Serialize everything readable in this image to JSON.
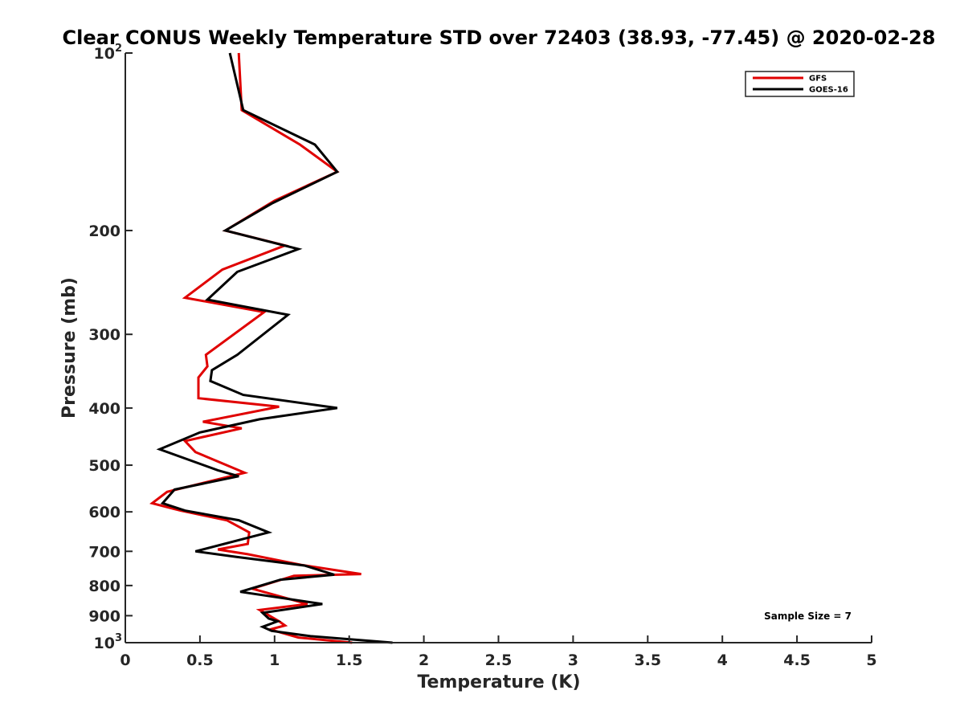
{
  "chart_data": {
    "type": "line",
    "title": "Clear CONUS Weekly Temperature STD over 72403 (38.93, -77.45) @ 2020-02-28",
    "xlabel": "Temperature (K)",
    "ylabel": "Pressure (mb)",
    "xlim": [
      0,
      5
    ],
    "ylim": [
      100,
      1000
    ],
    "y_scale": "log",
    "y_reversed": true,
    "x_ticks": [
      0,
      0.5,
      1,
      1.5,
      2,
      2.5,
      3,
      3.5,
      4,
      4.5,
      5
    ],
    "x_tick_labels": [
      "0",
      "0.5",
      "1",
      "1.5",
      "2",
      "2.5",
      "3",
      "3.5",
      "4",
      "4.5",
      "5"
    ],
    "y_ticks": [
      100,
      200,
      300,
      400,
      500,
      600,
      700,
      800,
      900,
      1000
    ],
    "y_tick_labels": [
      "10^2",
      "200",
      "300",
      "400",
      "500",
      "600",
      "700",
      "800",
      "900",
      "10^3"
    ],
    "legend_position": "top-right",
    "annotations": [
      "Sample Size = 7"
    ],
    "series": [
      {
        "name": "GFS",
        "color": "#e00000",
        "points": [
          [
            0.76,
            100
          ],
          [
            0.78,
            125
          ],
          [
            1.17,
            143
          ],
          [
            1.42,
            159
          ],
          [
            1.0,
            178
          ],
          [
            0.67,
            200
          ],
          [
            1.07,
            212
          ],
          [
            0.65,
            233
          ],
          [
            0.4,
            260
          ],
          [
            0.93,
            275
          ],
          [
            0.54,
            325
          ],
          [
            0.55,
            340
          ],
          [
            0.49,
            355
          ],
          [
            0.49,
            385
          ],
          [
            1.03,
            398
          ],
          [
            0.52,
            422
          ],
          [
            0.78,
            433
          ],
          [
            0.4,
            455
          ],
          [
            0.47,
            475
          ],
          [
            0.8,
            515
          ],
          [
            0.28,
            555
          ],
          [
            0.18,
            580
          ],
          [
            0.37,
            597
          ],
          [
            0.68,
            620
          ],
          [
            0.83,
            650
          ],
          [
            0.82,
            680
          ],
          [
            0.62,
            695
          ],
          [
            0.82,
            708
          ],
          [
            1.18,
            738
          ],
          [
            1.58,
            765
          ],
          [
            1.13,
            770
          ],
          [
            0.85,
            810
          ],
          [
            1.22,
            860
          ],
          [
            0.9,
            880
          ],
          [
            1.03,
            920
          ],
          [
            1.07,
            935
          ],
          [
            0.97,
            950
          ],
          [
            1.16,
            980
          ],
          [
            1.52,
            1000
          ]
        ]
      },
      {
        "name": "GOES-16",
        "color": "#000000",
        "points": [
          [
            0.7,
            100
          ],
          [
            0.79,
            125
          ],
          [
            1.27,
            143
          ],
          [
            1.42,
            159
          ],
          [
            0.98,
            180
          ],
          [
            0.67,
            200
          ],
          [
            1.16,
            215
          ],
          [
            0.75,
            235
          ],
          [
            0.55,
            262
          ],
          [
            1.09,
            278
          ],
          [
            0.75,
            325
          ],
          [
            0.58,
            345
          ],
          [
            0.57,
            360
          ],
          [
            0.79,
            380
          ],
          [
            1.42,
            400
          ],
          [
            0.9,
            418
          ],
          [
            0.5,
            440
          ],
          [
            0.23,
            470
          ],
          [
            0.62,
            510
          ],
          [
            0.76,
            522
          ],
          [
            0.33,
            550
          ],
          [
            0.25,
            580
          ],
          [
            0.4,
            597
          ],
          [
            0.76,
            620
          ],
          [
            0.96,
            650
          ],
          [
            0.47,
            700
          ],
          [
            0.74,
            715
          ],
          [
            1.2,
            740
          ],
          [
            1.4,
            767
          ],
          [
            1.04,
            782
          ],
          [
            0.77,
            820
          ],
          [
            1.32,
            860
          ],
          [
            0.92,
            890
          ],
          [
            0.96,
            910
          ],
          [
            1.02,
            920
          ],
          [
            0.92,
            940
          ],
          [
            0.98,
            955
          ],
          [
            1.24,
            975
          ],
          [
            1.79,
            1000
          ]
        ]
      }
    ]
  }
}
